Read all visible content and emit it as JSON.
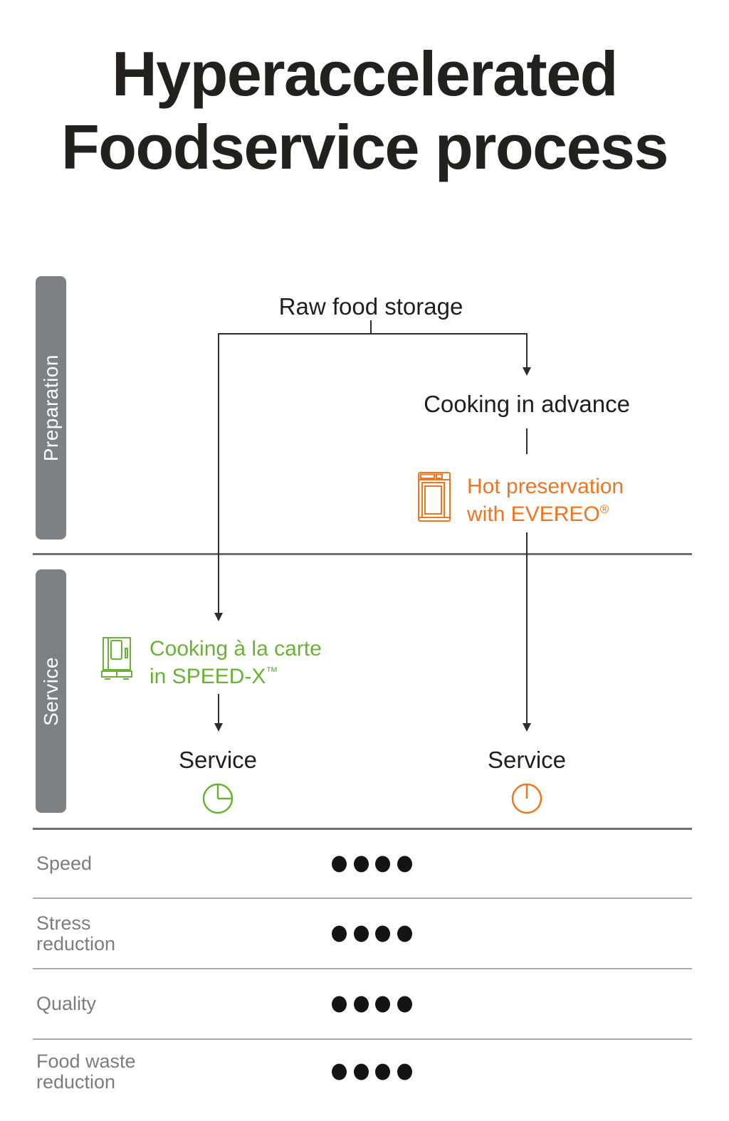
{
  "title": {
    "line1": "Hyperaccelerated",
    "line2": "Foodservice process"
  },
  "flow": {
    "stages": {
      "preparation": "Preparation",
      "service": "Service"
    },
    "raw_food_storage": "Raw food storage",
    "cooking_in_advance": "Cooking in advance",
    "hot_preservation": {
      "line1": "Hot preservation",
      "line2": "with EVEREO",
      "mark": "®"
    },
    "cooking_a_la_carte": {
      "line1": "Cooking à la carte",
      "line2": "in SPEED-X",
      "mark": "™"
    },
    "service_left": "Service",
    "service_right": "Service"
  },
  "icons": {
    "evereo_oven": "evereo-oven-icon",
    "speedx_oven": "speedx-oven-icon",
    "clock_quarter": "clock-quarter-icon",
    "clock_top": "clock-top-icon"
  },
  "colors": {
    "orange": "#ee7622",
    "green": "#69b235",
    "stage_bar_gray": "#7e8184",
    "divider_gray": "#6e7174",
    "row_line_gray": "#a9aaac",
    "label_gray": "#7b7c7f",
    "text_dark": "#232020",
    "dot_black": "#141414"
  },
  "metrics": {
    "rows": [
      {
        "label": "Speed",
        "label_lines": [
          "Speed"
        ],
        "rating": 4,
        "max": 4
      },
      {
        "label": "Stress reduction",
        "label_lines": [
          "Stress",
          "reduction"
        ],
        "rating": 4,
        "max": 4
      },
      {
        "label": "Quality",
        "label_lines": [
          "Quality"
        ],
        "rating": 4,
        "max": 4
      },
      {
        "label": "Food waste reduction",
        "label_lines": [
          "Food waste",
          "reduction"
        ],
        "rating": 4,
        "max": 4
      }
    ]
  },
  "chart_data": {
    "type": "table",
    "title": "Hyperaccelerated Foodservice process",
    "categories": [
      "Speed",
      "Stress reduction",
      "Quality",
      "Food waste reduction"
    ],
    "values": [
      4,
      4,
      4,
      4
    ],
    "max_value": 4,
    "legend_position": "none"
  }
}
